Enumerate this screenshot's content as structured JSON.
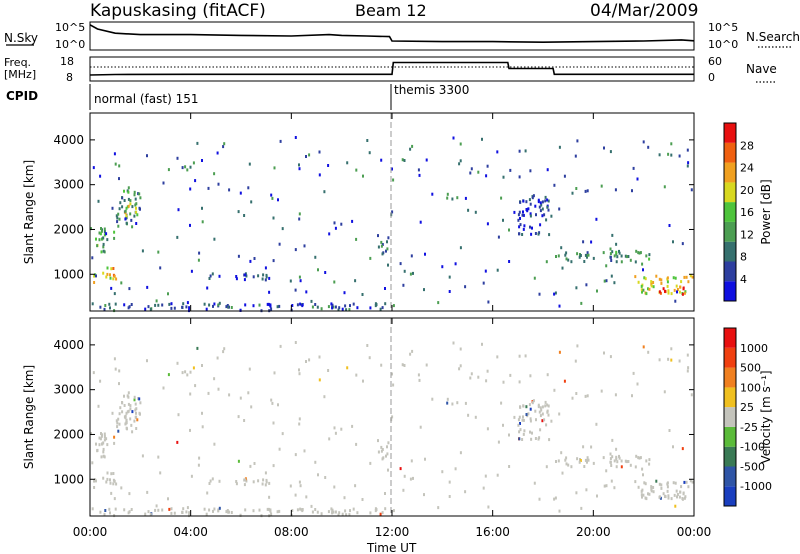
{
  "header": {
    "station": "Kapuskasing (fitACF)",
    "beam": "Beam 12",
    "date": "04/Mar/2009"
  },
  "noise_panel": {
    "left_label": "N.Sky",
    "right_label": "N.Search",
    "y_ticks": [
      "10^5",
      "10^0"
    ]
  },
  "freq_panel": {
    "left_label_line1": "Freq.",
    "left_label_line2": "[MHz]",
    "left_ticks": [
      "18",
      "8"
    ],
    "right_label": "Nave",
    "right_ticks": [
      "60",
      "0"
    ]
  },
  "cpid_panel": {
    "label": "CPID",
    "modes": [
      "normal (fast) 151",
      "themis 3300"
    ]
  },
  "power_panel": {
    "ylabel": "Slant Range [km]",
    "colorbar_label": "Power [dB]",
    "colorbar_ticks": [
      "28",
      "24",
      "20",
      "16",
      "12",
      "8",
      "4"
    ]
  },
  "velocity_panel": {
    "ylabel": "Slant Range [km]",
    "colorbar_label": "Velocity [m s⁻¹]",
    "colorbar_ticks": [
      "1000",
      "500",
      "100",
      "25",
      "-25",
      "-100",
      "-500",
      "-1000"
    ]
  },
  "x_axis": {
    "label": "Time UT",
    "ticks": [
      "00:00",
      "04:00",
      "08:00",
      "12:00",
      "16:00",
      "20:00",
      "00:00"
    ]
  },
  "chart_data": [
    {
      "type": "line",
      "name": "noise",
      "x": [
        0,
        0.3,
        1,
        2,
        4,
        6,
        8,
        9.5,
        10,
        11,
        11.9,
        12,
        14,
        16,
        18,
        20,
        22,
        23.5,
        24
      ],
      "y": [
        0.9,
        0.75,
        0.6,
        0.55,
        0.55,
        0.52,
        0.5,
        0.55,
        0.52,
        0.5,
        0.48,
        0.32,
        0.3,
        0.3,
        0.28,
        0.3,
        0.32,
        0.36,
        0.33
      ],
      "xlim": [
        0,
        24
      ]
    },
    {
      "type": "line",
      "name": "frequency",
      "x": [
        0,
        1,
        4,
        8,
        12,
        12.05,
        13,
        16.6,
        16.65,
        18.4,
        18.45,
        24
      ],
      "y": [
        10.5,
        10.7,
        10.8,
        10.8,
        10.8,
        15.7,
        15.7,
        15.7,
        13.2,
        13.2,
        10.8,
        10.8
      ],
      "ylim": [
        8,
        18
      ],
      "xlim": [
        0,
        24
      ]
    },
    {
      "type": "heatmap",
      "name": "power",
      "xlim": [
        0,
        24
      ],
      "ylim": [
        180,
        4600
      ],
      "clim": [
        0,
        32
      ],
      "units": "dB",
      "regions": [
        {
          "t": [
            0,
            0.6
          ],
          "r": [
            1500,
            2100
          ],
          "v": 14
        },
        {
          "t": [
            0.05,
            1.0
          ],
          "r": [
            850,
            1200
          ],
          "v": 22
        },
        {
          "t": [
            0.3,
            1.0
          ],
          "r": [
            1800,
            2000
          ],
          "v": 12
        },
        {
          "t": [
            1.0,
            2.0
          ],
          "r": [
            2100,
            2900
          ],
          "v": 10
        },
        {
          "t": [
            1.3,
            1.9
          ],
          "r": [
            2300,
            2650
          ],
          "v": 18
        },
        {
          "t": [
            4.5,
            7.2
          ],
          "r": [
            900,
            1050
          ],
          "v": 5
        },
        {
          "t": [
            11.4,
            11.9
          ],
          "r": [
            1500,
            1900
          ],
          "v": 10
        },
        {
          "t": [
            18.5,
            22.3
          ],
          "r": [
            1300,
            1550
          ],
          "v": 10
        },
        {
          "t": [
            21.6,
            24.0
          ],
          "r": [
            600,
            1000
          ],
          "v": 20
        },
        {
          "t": [
            22.6,
            24.0
          ],
          "r": [
            580,
            760
          ],
          "v": 27
        },
        {
          "t": [
            17.0,
            18.3
          ],
          "r": [
            1900,
            2800
          ],
          "v": 5
        },
        {
          "t": [
            0,
            12
          ],
          "r": [
            220,
            380
          ],
          "v": 6
        }
      ]
    },
    {
      "type": "heatmap",
      "name": "velocity",
      "xlim": [
        0,
        24
      ],
      "ylim": [
        180,
        4600
      ],
      "clim": [
        -1200,
        1200
      ],
      "units": "m s^-1",
      "regions": [
        {
          "t": [
            0.0,
            1.0
          ],
          "r": [
            800,
            1200
          ],
          "v": 0
        },
        {
          "t": [
            0.0,
            0.6
          ],
          "r": [
            1500,
            2100
          ],
          "v": 0
        },
        {
          "t": [
            1.0,
            2.0
          ],
          "r": [
            2100,
            2900
          ],
          "v": 0
        },
        {
          "t": [
            11.4,
            11.9
          ],
          "r": [
            1500,
            1900
          ],
          "v": 0
        },
        {
          "t": [
            18.5,
            22.3
          ],
          "r": [
            1300,
            1550
          ],
          "v": 0
        },
        {
          "t": [
            21.6,
            24.0
          ],
          "r": [
            600,
            1000
          ],
          "v": 0
        },
        {
          "t": [
            17.0,
            18.3
          ],
          "r": [
            1900,
            2800
          ],
          "v": 0
        }
      ]
    }
  ]
}
